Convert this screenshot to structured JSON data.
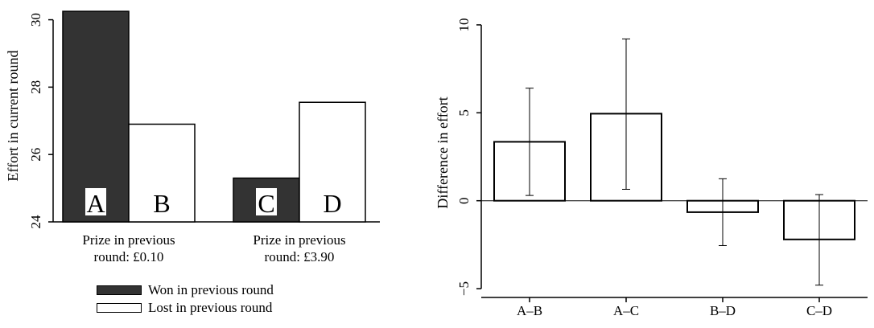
{
  "chart_data": [
    {
      "type": "bar",
      "ylabel": "Effort in current round",
      "ylim": [
        24,
        30.3
      ],
      "yticks": [
        24,
        26,
        28,
        30
      ],
      "groups": [
        {
          "label_lines": [
            "Prize in previous",
            "round: £0.10"
          ]
        },
        {
          "label_lines": [
            "Prize in previous",
            "round: £3.90"
          ]
        }
      ],
      "series": [
        {
          "name": "Won in previous round",
          "color": "#333333",
          "values": [
            30.25,
            25.3
          ],
          "bar_labels": [
            "A",
            "C"
          ]
        },
        {
          "name": "Lost in previous round",
          "color": "#ffffff",
          "values": [
            26.9,
            27.55
          ],
          "bar_labels": [
            "B",
            "D"
          ]
        }
      ],
      "legend": "bottom",
      "grid": false
    },
    {
      "type": "bar",
      "ylabel": "Difference in effort",
      "ylim": [
        -5.5,
        10.5
      ],
      "yticks": [
        -5,
        0,
        5,
        10
      ],
      "categories": [
        "A–B",
        "A–C",
        "B–D",
        "C–D"
      ],
      "values": [
        3.35,
        4.95,
        -0.65,
        -2.2
      ],
      "error_low": [
        0.3,
        0.65,
        -2.55,
        -4.8
      ],
      "error_high": [
        6.4,
        9.2,
        1.25,
        0.35
      ],
      "grid": false
    }
  ],
  "legend": {
    "items": [
      {
        "label": "Won in previous round",
        "color": "#333333"
      },
      {
        "label": "Lost in previous round",
        "color": "#ffffff"
      }
    ]
  }
}
